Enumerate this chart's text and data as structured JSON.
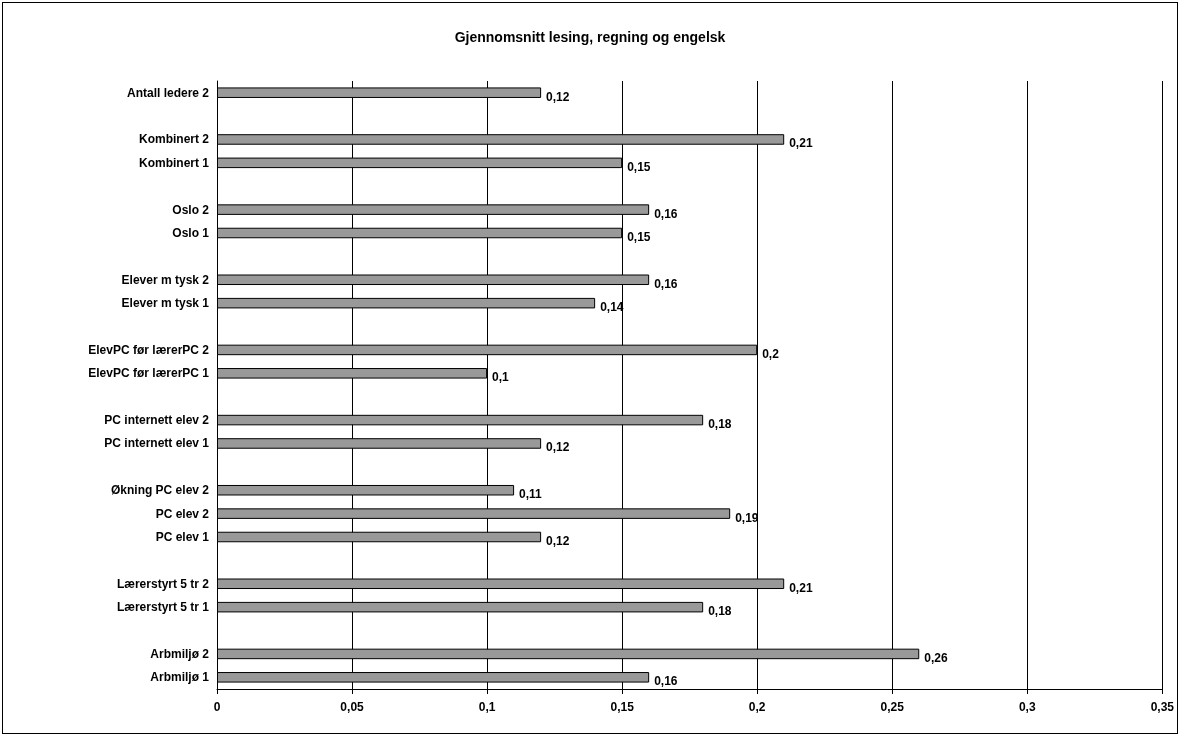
{
  "chart_data": {
    "type": "bar",
    "orientation": "horizontal",
    "title": "Gjennomsnitt lesing, regning og engelsk",
    "categories": [
      "Antall ledere 2",
      null,
      "Kombinert 2",
      "Kombinert 1",
      null,
      "Oslo 2",
      "Oslo 1",
      null,
      "Elever m tysk 2",
      "Elever m tysk 1",
      null,
      "ElevPC før lærerPC 2",
      "ElevPC før lærerPC 1",
      null,
      "PC internett elev 2",
      "PC internett elev 1",
      null,
      "Økning PC elev 2",
      "PC elev 2",
      "PC elev 1",
      null,
      "Lærerstyrt 5 tr 2",
      "Lærerstyrt 5 tr 1",
      null,
      "Arbmiljø 2",
      "Arbmiljø 1"
    ],
    "values": [
      0.12,
      null,
      0.21,
      0.15,
      null,
      0.16,
      0.15,
      null,
      0.16,
      0.14,
      null,
      0.2,
      0.1,
      null,
      0.18,
      0.12,
      null,
      0.11,
      0.19,
      0.12,
      null,
      0.21,
      0.18,
      null,
      0.26,
      0.16
    ],
    "value_labels": [
      "0,12",
      null,
      "0,21",
      "0,15",
      null,
      "0,16",
      "0,15",
      null,
      "0,16",
      "0,14",
      null,
      "0,2",
      "0,1",
      null,
      "0,18",
      "0,12",
      null,
      "0,11",
      "0,19",
      "0,12",
      null,
      "0,21",
      "0,18",
      null,
      "0,26",
      "0,16"
    ],
    "color": "#999999",
    "xlim": [
      0,
      0.35
    ],
    "xticks": [
      0,
      {
        "value": 0.05,
        "label": "0,05"
      },
      {
        "value": 0.1,
        "label": "0,1"
      },
      {
        "value": 0.15,
        "label": "0,15"
      },
      {
        "value": 0.2,
        "label": "0,2"
      },
      {
        "value": 0.25,
        "label": "0,25"
      },
      {
        "value": 0.3,
        "label": "0,3"
      },
      {
        "value": 0.35,
        "label": "0,35"
      }
    ],
    "grid": "x"
  }
}
